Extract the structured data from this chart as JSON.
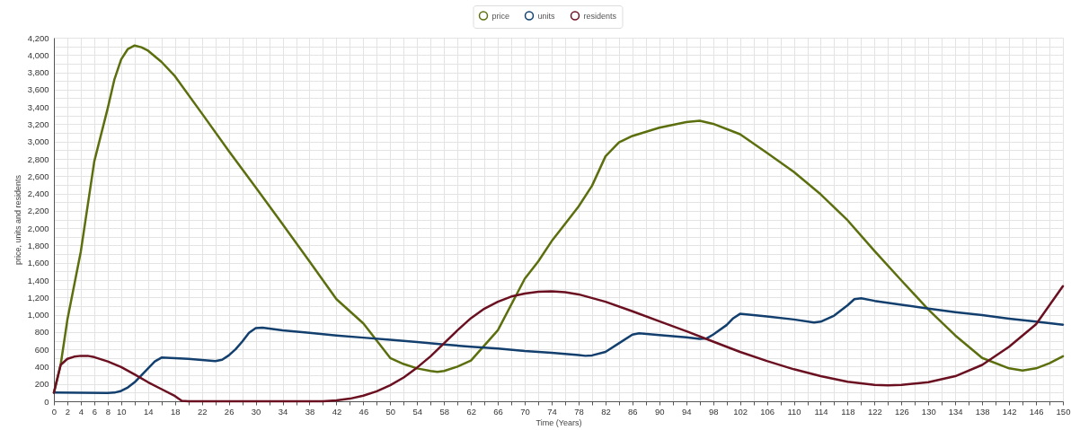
{
  "chart_data": {
    "type": "line",
    "xlabel": "Time (Years)",
    "ylabel": "price, units and residents",
    "legend": "top",
    "grid": true,
    "marker": "none",
    "line_style": "solid",
    "xlim": [
      0,
      150
    ],
    "ylim": [
      0,
      4200
    ],
    "xticks": [
      0,
      2,
      4,
      6,
      8,
      10,
      {
        "value": 12,
        "label": null
      },
      14,
      {
        "value": 16,
        "label": null
      },
      18,
      {
        "value": 20,
        "label": null
      },
      22,
      {
        "value": 24,
        "label": null
      },
      26,
      {
        "value": 28,
        "label": null
      },
      30,
      {
        "value": 32,
        "label": null
      },
      34,
      {
        "value": 36,
        "label": null
      },
      38,
      {
        "value": 40,
        "label": null
      },
      42,
      {
        "value": 44,
        "label": null
      },
      46,
      {
        "value": 48,
        "label": null
      },
      50,
      {
        "value": 52,
        "label": null
      },
      54,
      {
        "value": 56,
        "label": null
      },
      58,
      {
        "value": 60,
        "label": null
      },
      62,
      {
        "value": 64,
        "label": null
      },
      66,
      {
        "value": 68,
        "label": null
      },
      70,
      {
        "value": 72,
        "label": null
      },
      74,
      {
        "value": 76,
        "label": null
      },
      78,
      {
        "value": 80,
        "label": null
      },
      82,
      {
        "value": 84,
        "label": null
      },
      86,
      {
        "value": 88,
        "label": null
      },
      90,
      {
        "value": 92,
        "label": null
      },
      94,
      {
        "value": 96,
        "label": null
      },
      98,
      {
        "value": 100,
        "label": null
      },
      102,
      {
        "value": 104,
        "label": null
      },
      106,
      {
        "value": 108,
        "label": null
      },
      110,
      {
        "value": 112,
        "label": null
      },
      114,
      {
        "value": 116,
        "label": null
      },
      118,
      {
        "value": 120,
        "label": null
      },
      122,
      {
        "value": 124,
        "label": null
      },
      126,
      {
        "value": 128,
        "label": null
      },
      130,
      {
        "value": 132,
        "label": null
      },
      134,
      {
        "value": 136,
        "label": null
      },
      138,
      {
        "value": 140,
        "label": null
      },
      142,
      {
        "value": 144,
        "label": null
      },
      146,
      {
        "value": 148,
        "label": null
      },
      150
    ],
    "yticks": [
      0,
      {
        "value": 100,
        "label": null
      },
      200,
      {
        "value": 300,
        "label": null
      },
      400,
      {
        "value": 500,
        "label": null
      },
      600,
      {
        "value": 700,
        "label": null
      },
      800,
      {
        "value": 900,
        "label": null
      },
      {
        "value": 1000,
        "label": "1,000"
      },
      {
        "value": 1100,
        "label": null
      },
      {
        "value": 1200,
        "label": "1,200"
      },
      {
        "value": 1300,
        "label": null
      },
      {
        "value": 1400,
        "label": "1,400"
      },
      {
        "value": 1500,
        "label": null
      },
      {
        "value": 1600,
        "label": "1,600"
      },
      {
        "value": 1700,
        "label": null
      },
      {
        "value": 1800,
        "label": "1,800"
      },
      {
        "value": 1900,
        "label": null
      },
      {
        "value": 2000,
        "label": "2,000"
      },
      {
        "value": 2100,
        "label": null
      },
      {
        "value": 2200,
        "label": "2,200"
      },
      {
        "value": 2300,
        "label": null
      },
      {
        "value": 2400,
        "label": "2,400"
      },
      {
        "value": 2500,
        "label": null
      },
      {
        "value": 2600,
        "label": "2,600"
      },
      {
        "value": 2700,
        "label": null
      },
      {
        "value": 2800,
        "label": "2,800"
      },
      {
        "value": 2900,
        "label": null
      },
      {
        "value": 3000,
        "label": "3,000"
      },
      {
        "value": 3100,
        "label": null
      },
      {
        "value": 3200,
        "label": "3,200"
      },
      {
        "value": 3300,
        "label": null
      },
      {
        "value": 3400,
        "label": "3,400"
      },
      {
        "value": 3500,
        "label": null
      },
      {
        "value": 3600,
        "label": "3,600"
      },
      {
        "value": 3700,
        "label": null
      },
      {
        "value": 3800,
        "label": "3,800"
      },
      {
        "value": 3900,
        "label": null
      },
      {
        "value": 4000,
        "label": "4,000"
      },
      {
        "value": 4100,
        "label": null
      },
      {
        "value": 4200,
        "label": "4,200"
      }
    ],
    "series": [
      {
        "name": "price",
        "color": "#5b6f0e",
        "x": [
          0,
          1,
          2,
          4,
          6,
          8,
          9,
          10,
          11,
          12,
          13,
          14,
          16,
          18,
          22,
          26,
          30,
          34,
          38,
          42,
          46,
          50,
          52,
          54,
          56,
          57,
          58,
          60,
          62,
          66,
          70,
          72,
          74,
          78,
          80,
          82,
          84,
          86,
          90,
          94,
          96,
          98,
          102,
          106,
          110,
          114,
          118,
          122,
          126,
          130,
          134,
          138,
          142,
          144,
          146,
          148,
          150
        ],
        "values": [
          100,
          420,
          940,
          1730,
          2770,
          3385,
          3720,
          3950,
          4070,
          4110,
          4090,
          4050,
          3920,
          3755,
          3325,
          2890,
          2470,
          2045,
          1615,
          1180,
          900,
          500,
          430,
          380,
          350,
          340,
          350,
          400,
          470,
          820,
          1416,
          1615,
          1850,
          2250,
          2490,
          2830,
          2990,
          3065,
          3160,
          3225,
          3240,
          3205,
          3085,
          2870,
          2650,
          2390,
          2090,
          1735,
          1395,
          1060,
          760,
          500,
          380,
          355,
          380,
          440,
          520
        ]
      },
      {
        "name": "units",
        "color": "#123f6e",
        "x": [
          0,
          8,
          9,
          10,
          11,
          12,
          13,
          14,
          15,
          16,
          20,
          24,
          25,
          26,
          27,
          28,
          29,
          30,
          31,
          34,
          38,
          42,
          46,
          50,
          54,
          58,
          62,
          66,
          70,
          74,
          78,
          79,
          80,
          82,
          84,
          86,
          87,
          90,
          94,
          96,
          97,
          98,
          100,
          101,
          102,
          106,
          110,
          113,
          114,
          116,
          118,
          119,
          120,
          122,
          126,
          130,
          134,
          138,
          142,
          146,
          150
        ],
        "values": [
          100,
          95,
          100,
          120,
          160,
          220,
          300,
          380,
          460,
          505,
          490,
          465,
          480,
          530,
          600,
          690,
          790,
          845,
          850,
          820,
          790,
          760,
          735,
          710,
          685,
          655,
          630,
          610,
          580,
          560,
          535,
          525,
          530,
          570,
          670,
          770,
          785,
          765,
          740,
          720,
          725,
          770,
          880,
          960,
          1010,
          980,
          945,
          910,
          920,
          990,
          1110,
          1180,
          1190,
          1160,
          1115,
          1070,
          1030,
          995,
          955,
          920,
          885
        ]
      },
      {
        "name": "residents",
        "color": "#6b1020",
        "x": [
          0,
          1,
          2,
          3,
          4,
          5,
          6,
          8,
          10,
          12,
          14,
          16,
          18,
          19,
          20,
          40,
          42,
          44,
          46,
          48,
          50,
          52,
          54,
          56,
          58,
          60,
          62,
          64,
          66,
          68,
          70,
          72,
          74,
          76,
          78,
          82,
          86,
          90,
          94,
          98,
          102,
          106,
          110,
          114,
          118,
          122,
          124,
          126,
          130,
          134,
          138,
          142,
          146,
          150
        ],
        "values": [
          100,
          420,
          490,
          515,
          525,
          525,
          510,
          460,
          395,
          310,
          220,
          140,
          60,
          5,
          0,
          0,
          10,
          30,
          65,
          115,
          185,
          275,
          390,
          520,
          670,
          820,
          960,
          1070,
          1150,
          1210,
          1245,
          1265,
          1270,
          1260,
          1235,
          1150,
          1040,
          925,
          810,
          690,
          570,
          465,
          370,
          290,
          225,
          190,
          185,
          190,
          220,
          290,
          420,
          630,
          890,
          1330
        ]
      }
    ]
  }
}
